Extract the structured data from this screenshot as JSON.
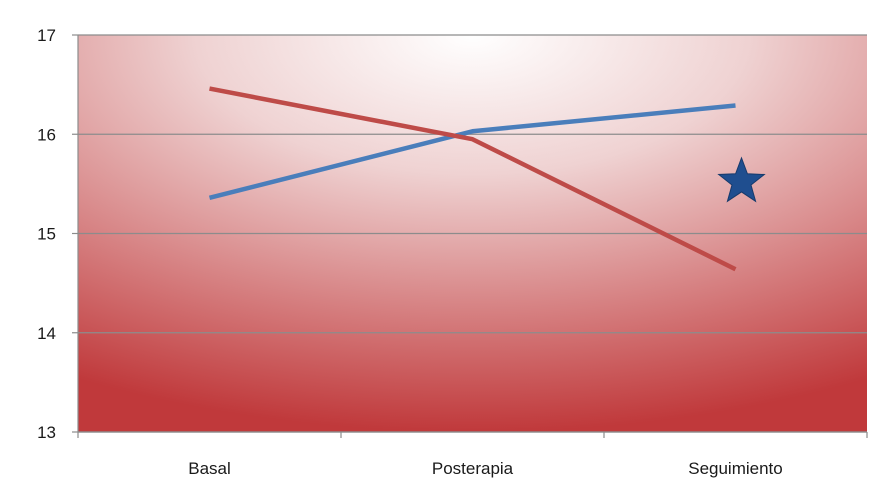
{
  "chart_data": {
    "type": "line",
    "title": "",
    "xlabel": "",
    "ylabel": "",
    "categories": [
      "Basal",
      "Posterapia",
      "Seguimiento"
    ],
    "ylim": [
      13,
      17
    ],
    "yticks": [
      "13",
      "14",
      "15",
      "16",
      "17"
    ],
    "grid": true,
    "legend": "none",
    "series": [
      {
        "values": [
          15.36,
          16.03,
          16.29
        ],
        "color": "#4a7ebb"
      },
      {
        "values": [
          16.46,
          15.95,
          14.64
        ],
        "color": "#be4b48"
      }
    ],
    "annotations": [
      {
        "type": "star",
        "category": "Seguimiento",
        "y": 15.52,
        "color": "#1f4e8f"
      }
    ],
    "plot_background": {
      "center": "#ffffff",
      "edge": "#c0393b"
    }
  }
}
